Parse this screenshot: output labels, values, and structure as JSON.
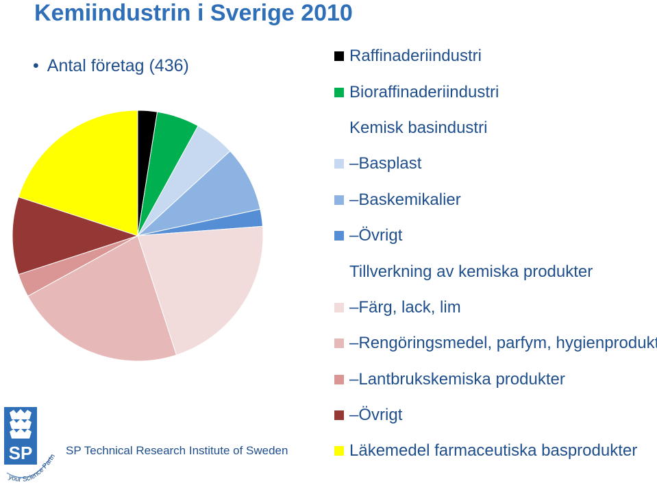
{
  "title": "Kemiindustrin i Sverige 2010",
  "bullet": "Antal företag (436)",
  "organization": "SP Technical Research Institute of Sweden",
  "logo": {
    "letters": "SP",
    "tagline": "your Science Partner"
  },
  "legend": [
    {
      "label": "Raffinaderiindustri",
      "color": "#000000",
      "sub": false
    },
    {
      "label": "Bioraffinaderiindustri",
      "color": "#00B050",
      "sub": false
    },
    {
      "label": "Kemisk basindustri",
      "color": null,
      "sub": false
    },
    {
      "label": "Basplast",
      "color": "#C6D9F1",
      "sub": true
    },
    {
      "label": "Baskemikalier",
      "color": "#8DB3E2",
      "sub": true
    },
    {
      "label": "Övrigt",
      "color": "#558ED5",
      "sub": true
    },
    {
      "label": "Tillverkning av kemiska produkter",
      "color": null,
      "sub": false
    },
    {
      "label": "Färg, lack, lim",
      "color": "#F2DCDB",
      "sub": true
    },
    {
      "label": "Rengöringsmedel, parfym, hygienprodukter",
      "color": "#E6B9B8",
      "sub": true
    },
    {
      "label": "Lantbrukskemiska produkter",
      "color": "#D99694",
      "sub": true
    },
    {
      "label": "Övrigt",
      "color": "#953735",
      "sub": true
    },
    {
      "label": "Läkemedel farmaceutiska basprodukter",
      "color": "#FFFF00",
      "sub": false
    }
  ],
  "chart_data": {
    "type": "pie",
    "title": "Kemiindustrin i Sverige 2010",
    "total": 436,
    "start": "12 o'clock, clockwise",
    "slices": [
      {
        "label": "Raffinaderiindustri",
        "value": 2.5,
        "color": "#000000"
      },
      {
        "label": "Bioraffinaderiindustri",
        "value": 5.5,
        "color": "#00B050"
      },
      {
        "label": "Basplast",
        "value": 5.2,
        "color": "#C6D9F1"
      },
      {
        "label": "Baskemikalier",
        "value": 8.4,
        "color": "#8DB3E2"
      },
      {
        "label": "Övrigt",
        "value": 2.2,
        "color": "#558ED5"
      },
      {
        "label": "Färg, lack, lim",
        "value": 21.2,
        "color": "#F2DCDB"
      },
      {
        "label": "Rengöringsmedel, parfym, hygienprodukter",
        "value": 22.0,
        "color": "#E6B9B8"
      },
      {
        "label": "Lantbrukskemiska produkter",
        "value": 3.0,
        "color": "#D99694"
      },
      {
        "label": "Övrigt",
        "value": 10.0,
        "color": "#953735"
      },
      {
        "label": "Läkemedel farmaceutiska basprodukter",
        "value": 20.0,
        "color": "#FFFF00"
      }
    ]
  }
}
